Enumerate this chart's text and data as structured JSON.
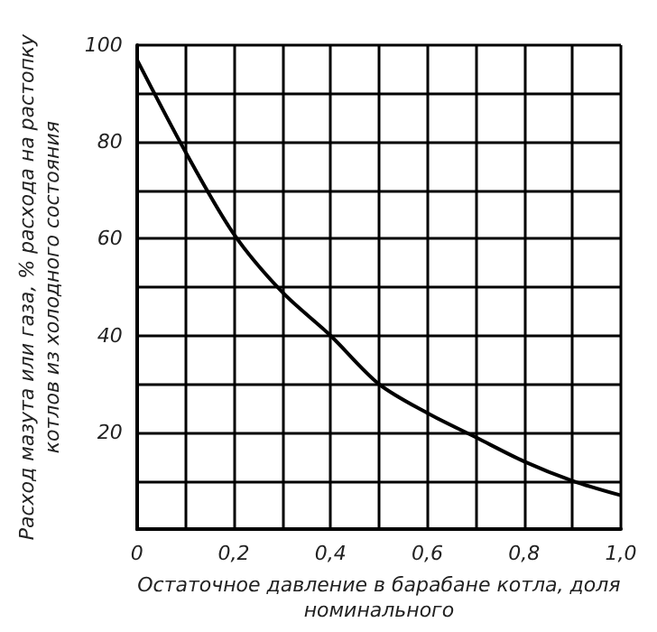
{
  "chart_data": {
    "type": "line",
    "xlabel": "Остаточное давление в барабане котла, доля\nноминального",
    "ylabel": "Расход мазута или газа, % расхода на растопку\nкотлов из холодного состояния",
    "x": [
      0,
      0.1,
      0.2,
      0.3,
      0.4,
      0.5,
      0.6,
      0.7,
      0.8,
      0.9,
      1.0
    ],
    "series": [
      {
        "color": "#000000",
        "values": [
          97,
          78,
          61,
          49,
          40,
          30,
          24,
          19,
          14,
          10,
          7
        ]
      }
    ],
    "xlim": [
      0,
      1
    ],
    "ylim": [
      0,
      100
    ],
    "xticks": [
      {
        "value": 0,
        "label": "0"
      },
      {
        "value": 0.1,
        "label": null
      },
      {
        "value": 0.2,
        "label": "0,2"
      },
      {
        "value": 0.3,
        "label": null
      },
      {
        "value": 0.4,
        "label": "0,4"
      },
      {
        "value": 0.5,
        "label": null
      },
      {
        "value": 0.6,
        "label": "0,6"
      },
      {
        "value": 0.7,
        "label": null
      },
      {
        "value": 0.8,
        "label": "0,8"
      },
      {
        "value": 0.9,
        "label": null
      },
      {
        "value": 1.0,
        "label": "1,0"
      }
    ],
    "yticks": [
      {
        "value": 0,
        "label": null
      },
      {
        "value": 10,
        "label": null
      },
      20,
      {
        "value": 30,
        "label": null
      },
      40,
      {
        "value": 50,
        "label": null
      },
      60,
      {
        "value": 70,
        "label": null
      },
      80,
      {
        "value": 90,
        "label": null
      },
      100
    ],
    "grid": true,
    "marker": "none",
    "line_style": "solid"
  }
}
